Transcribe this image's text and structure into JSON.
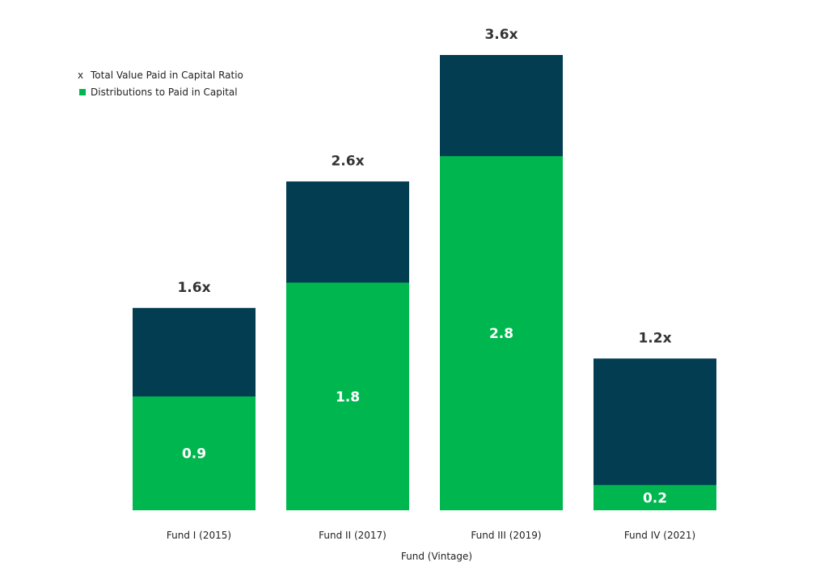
{
  "chart_data": {
    "type": "bar",
    "stacked": true,
    "title": "",
    "xlabel": "Fund (Vintage)",
    "ylabel": "",
    "ylim": [
      0,
      3.6
    ],
    "grid": false,
    "legend_position": "top-left",
    "categories": [
      "Fund I (2015)",
      "Fund II (2017)",
      "Fund III (2019)",
      "Fund IV (2021)"
    ],
    "series": [
      {
        "name": "Distributions to Paid in Capital",
        "color": "#00b74f",
        "values": [
          0.9,
          1.8,
          2.8,
          0.2
        ],
        "labels": [
          "0.9",
          "1.8",
          "2.8",
          "0.2"
        ]
      },
      {
        "name": "x Total Value Paid in Capital Ratio",
        "color": "#033d52",
        "totals": [
          1.6,
          2.6,
          3.6,
          1.2
        ],
        "labels": [
          "1.6x",
          "2.6x",
          "3.6x",
          "1.2x"
        ]
      }
    ],
    "legend": [
      {
        "marker": "x",
        "text": "Total Value Paid in Capital Ratio",
        "color": "#222222"
      },
      {
        "marker": "square",
        "text": "Distributions to Paid in Capital",
        "color": "#00b74f"
      }
    ]
  }
}
